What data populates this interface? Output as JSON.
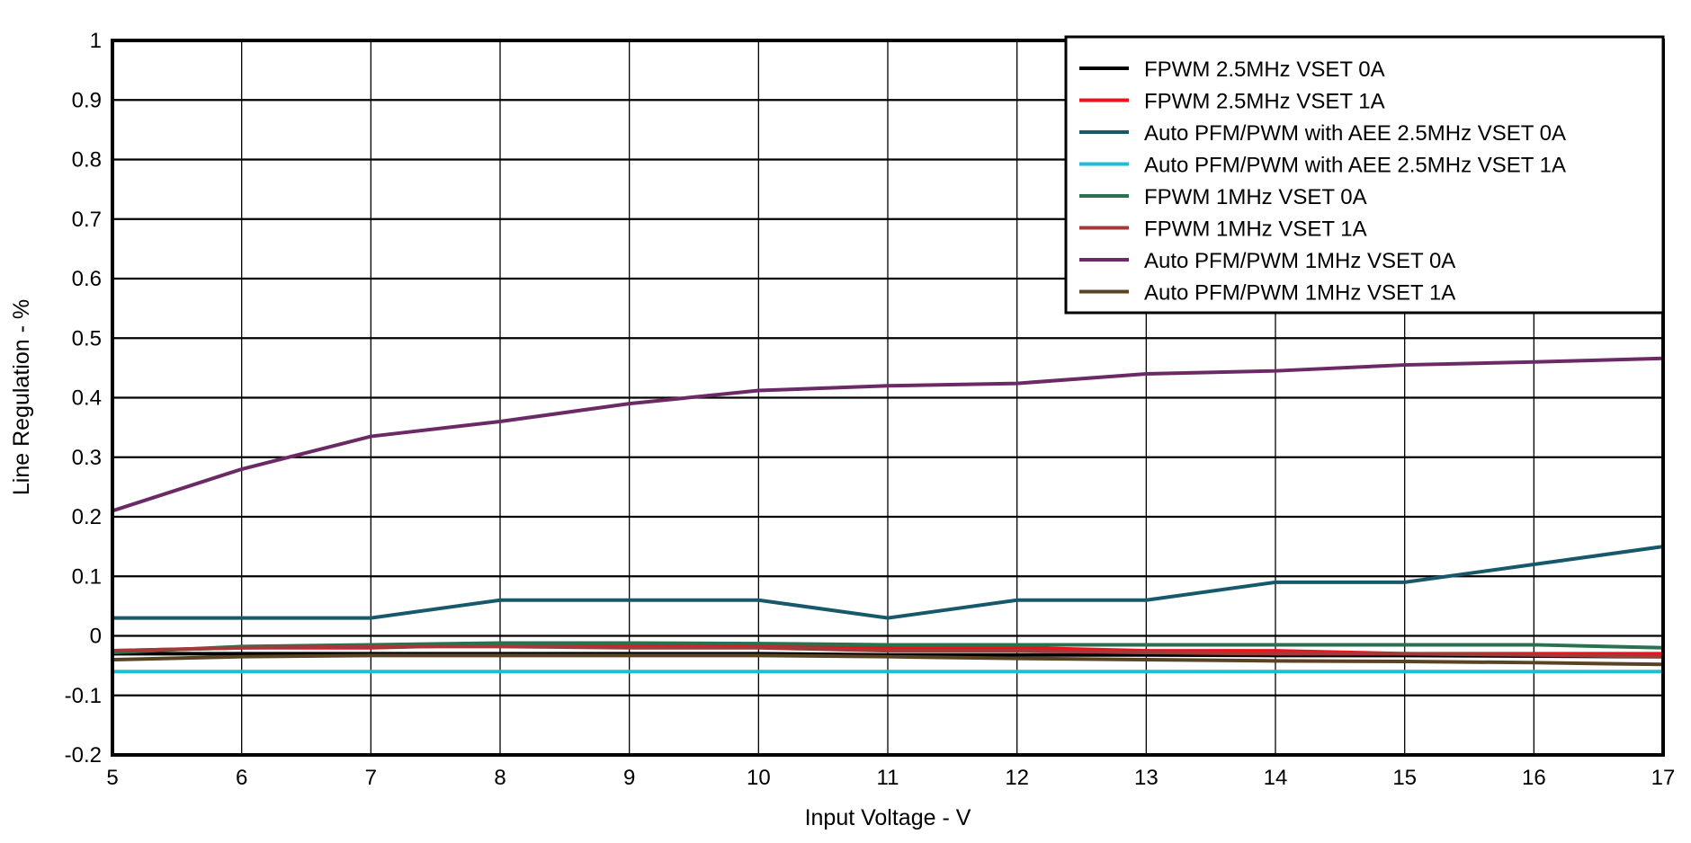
{
  "chart_data": {
    "type": "line",
    "title": "",
    "xlabel": "Input Voltage - V",
    "ylabel": "Line Regulation - %",
    "xlim": [
      5,
      17
    ],
    "ylim": [
      -0.2,
      1
    ],
    "x_ticks": [
      "5",
      "6",
      "7",
      "8",
      "9",
      "10",
      "11",
      "12",
      "13",
      "14",
      "15",
      "16",
      "17"
    ],
    "y_ticks": [
      "-0.2",
      "-0.1",
      "0",
      "0.1",
      "0.2",
      "0.3",
      "0.4",
      "0.5",
      "0.6",
      "0.7",
      "0.8",
      "0.9",
      "1"
    ],
    "grid": true,
    "legend_position": "top-right",
    "x": [
      5,
      6,
      7,
      8,
      9,
      10,
      11,
      12,
      13,
      14,
      15,
      16,
      17
    ],
    "series": [
      {
        "name": "FPWM 2.5MHz VSET 0A",
        "color": "#000000",
        "values": [
          -0.03,
          -0.03,
          -0.03,
          -0.03,
          -0.03,
          -0.03,
          -0.032,
          -0.032,
          -0.032,
          -0.033,
          -0.033,
          -0.034,
          -0.035
        ]
      },
      {
        "name": "FPWM 2.5MHz VSET 1A",
        "color": "#e8141c",
        "values": [
          -0.025,
          -0.02,
          -0.02,
          -0.015,
          -0.015,
          -0.015,
          -0.02,
          -0.02,
          -0.025,
          -0.025,
          -0.03,
          -0.03,
          -0.03
        ]
      },
      {
        "name": "Auto PFM/PWM with AEE 2.5MHz VSET 0A",
        "color": "#17586b",
        "values": [
          0.03,
          0.03,
          0.03,
          0.06,
          0.06,
          0.06,
          0.03,
          0.06,
          0.06,
          0.09,
          0.09,
          0.12,
          0.15
        ]
      },
      {
        "name": "Auto PFM/PWM with AEE 2.5MHz VSET 1A",
        "color": "#1ebfd2",
        "values": [
          -0.06,
          -0.06,
          -0.06,
          -0.06,
          -0.06,
          -0.06,
          -0.06,
          -0.06,
          -0.06,
          -0.06,
          -0.06,
          -0.06,
          -0.06
        ]
      },
      {
        "name": "FPWM 1MHz VSET 0A",
        "color": "#2a7150",
        "values": [
          -0.028,
          -0.018,
          -0.015,
          -0.012,
          -0.012,
          -0.013,
          -0.015,
          -0.015,
          -0.015,
          -0.015,
          -0.015,
          -0.015,
          -0.02
        ]
      },
      {
        "name": "FPWM 1MHz VSET 1A",
        "color": "#a33a3a",
        "values": [
          -0.025,
          -0.02,
          -0.018,
          -0.018,
          -0.02,
          -0.02,
          -0.025,
          -0.025,
          -0.028,
          -0.03,
          -0.03,
          -0.032,
          -0.035
        ]
      },
      {
        "name": "Auto PFM/PWM 1MHz VSET 0A",
        "color": "#6b2a66",
        "values": [
          0.21,
          0.28,
          0.335,
          0.36,
          0.39,
          0.412,
          0.42,
          0.424,
          0.44,
          0.445,
          0.455,
          0.46,
          0.466
        ]
      },
      {
        "name": "Auto PFM/PWM 1MHz VSET 1A",
        "color": "#5a4322",
        "values": [
          -0.04,
          -0.035,
          -0.033,
          -0.033,
          -0.033,
          -0.033,
          -0.035,
          -0.038,
          -0.04,
          -0.042,
          -0.043,
          -0.045,
          -0.048
        ]
      }
    ]
  }
}
